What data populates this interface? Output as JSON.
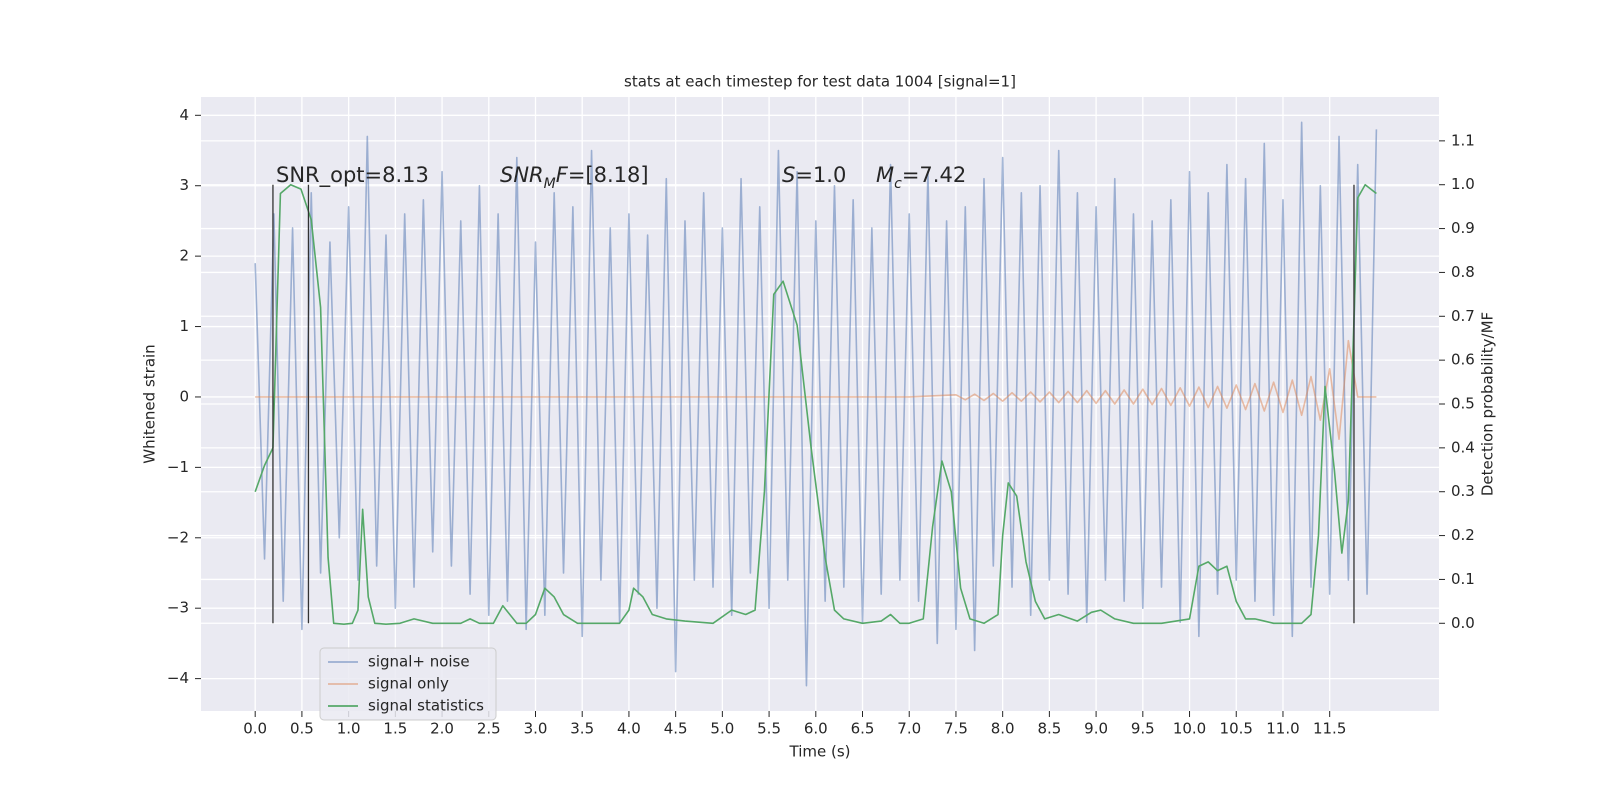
{
  "chart_data": {
    "type": "line",
    "title": "stats at each timestep for test data 1004 [signal=1]",
    "xlabel": "Time (s)",
    "ylabel": "Whitened strain",
    "y2label": "Detection probability/MF",
    "xlim": [
      -0.58,
      12.67
    ],
    "ylim": [
      -4.46,
      4.26
    ],
    "y2lim": [
      -0.2,
      1.2
    ],
    "xticks": [
      {
        "value": 0,
        "label": "0.0"
      },
      0.5,
      {
        "value": 1,
        "label": "1.0"
      },
      1.5,
      {
        "value": 2,
        "label": "2.0"
      },
      2.5,
      {
        "value": 3,
        "label": "3.0"
      },
      3.5,
      {
        "value": 4,
        "label": "4.0"
      },
      4.5,
      {
        "value": 5,
        "label": "5.0"
      },
      5.5,
      {
        "value": 6,
        "label": "6.0"
      },
      6.5,
      {
        "value": 7,
        "label": "7.0"
      },
      7.5,
      {
        "value": 8,
        "label": "8.0"
      },
      8.5,
      {
        "value": 9,
        "label": "9.0"
      },
      9.5,
      {
        "value": 10,
        "label": "10.0"
      },
      10.5,
      {
        "value": 11,
        "label": "11.0"
      },
      11.5
    ],
    "yticks": [
      {
        "value": -4,
        "label": "−4"
      },
      {
        "value": -3,
        "label": "−3"
      },
      {
        "value": -2,
        "label": "−2"
      },
      {
        "value": -1,
        "label": "−1"
      },
      0,
      1,
      2,
      3,
      4
    ],
    "y2ticks": [
      {
        "value": 0,
        "label": "0.0"
      },
      0.1,
      0.2,
      0.3,
      0.4,
      0.5,
      0.6,
      0.7,
      0.8,
      0.9,
      {
        "value": 1,
        "label": "1.0"
      },
      1.1
    ],
    "grid": true,
    "legend": "lower left",
    "series": [
      {
        "name": "signal+ noise",
        "color": "#4c72b0",
        "alpha": 0.5,
        "x": [
          0,
          0.1,
          0.2,
          0.3,
          0.4,
          0.5,
          0.6,
          0.7,
          0.8,
          0.9,
          1,
          1.1,
          1.2,
          1.3,
          1.4,
          1.5,
          1.6,
          1.7,
          1.8,
          1.9,
          2,
          2.1,
          2.2,
          2.3,
          2.4,
          2.5,
          2.6,
          2.7,
          2.8,
          2.9,
          3,
          3.1,
          3.2,
          3.3,
          3.4,
          3.5,
          3.6,
          3.7,
          3.8,
          3.9,
          4,
          4.1,
          4.2,
          4.3,
          4.4,
          4.5,
          4.6,
          4.7,
          4.8,
          4.9,
          5,
          5.1,
          5.2,
          5.3,
          5.4,
          5.5,
          5.6,
          5.7,
          5.8,
          5.9,
          6,
          6.1,
          6.2,
          6.3,
          6.4,
          6.5,
          6.6,
          6.7,
          6.8,
          6.9,
          7,
          7.1,
          7.2,
          7.3,
          7.4,
          7.5,
          7.6,
          7.7,
          7.8,
          7.9,
          8,
          8.1,
          8.2,
          8.3,
          8.4,
          8.5,
          8.6,
          8.7,
          8.8,
          8.9,
          9,
          9.1,
          9.2,
          9.3,
          9.4,
          9.5,
          9.6,
          9.7,
          9.8,
          9.9,
          10,
          10.1,
          10.2,
          10.3,
          10.4,
          10.5,
          10.6,
          10.7,
          10.8,
          10.9,
          11,
          11.1,
          11.2,
          11.3,
          11.4,
          11.5,
          11.6,
          11.7,
          11.8,
          11.9,
          12
        ],
        "values": [
          1.9,
          -2.3,
          2.6,
          -2.9,
          2.4,
          -3.3,
          2.9,
          -2.5,
          2.2,
          -2.0,
          2.7,
          -2.6,
          3.7,
          -2.4,
          2.3,
          -3.0,
          2.6,
          -2.7,
          2.8,
          -2.2,
          3.2,
          -2.4,
          2.5,
          -2.8,
          3.0,
          -3.1,
          2.6,
          -2.9,
          3.4,
          -3.3,
          2.2,
          -3.1,
          2.9,
          -2.5,
          2.7,
          -3.4,
          3.5,
          -2.6,
          2.4,
          -3.2,
          2.6,
          -2.8,
          2.3,
          -3.0,
          3.1,
          -3.9,
          2.5,
          -2.6,
          2.9,
          -2.7,
          2.4,
          -3.1,
          3.1,
          -2.5,
          2.7,
          -3.0,
          3.5,
          -2.6,
          3.2,
          -4.1,
          2.5,
          -2.9,
          3.0,
          -2.7,
          2.8,
          -3.2,
          2.4,
          -2.8,
          3.3,
          -2.6,
          2.6,
          -2.9,
          3.2,
          -3.5,
          2.5,
          -3.3,
          2.7,
          -3.6,
          3.1,
          -2.4,
          3.4,
          -2.7,
          2.9,
          -3.1,
          3.0,
          -2.6,
          3.5,
          -2.8,
          2.9,
          -3.2,
          2.7,
          -2.6,
          3.1,
          -2.9,
          2.6,
          -3.0,
          2.5,
          -2.7,
          2.8,
          -3.2,
          3.2,
          -3.4,
          2.9,
          -2.8,
          3.3,
          -2.6,
          3.1,
          -2.9,
          3.6,
          -3.1,
          2.8,
          -3.4,
          3.9,
          -2.7,
          3.0,
          -2.8,
          3.7,
          -2.6,
          3.3,
          -2.8,
          3.8
        ]
      },
      {
        "name": "signal only",
        "color": "#dd8452",
        "alpha": 0.5,
        "x": [
          0,
          7,
          7.5,
          7.6,
          7.7,
          7.8,
          7.9,
          8,
          8.1,
          8.2,
          8.3,
          8.4,
          8.5,
          8.6,
          8.7,
          8.8,
          8.9,
          9,
          9.1,
          9.2,
          9.3,
          9.4,
          9.5,
          9.6,
          9.7,
          9.8,
          9.9,
          10,
          10.1,
          10.2,
          10.3,
          10.4,
          10.5,
          10.6,
          10.7,
          10.8,
          10.9,
          11,
          11.1,
          11.2,
          11.3,
          11.4,
          11.5,
          11.6,
          11.7,
          11.8,
          12
        ],
        "values": [
          0,
          0,
          0.03,
          -0.04,
          0.04,
          -0.05,
          0.05,
          -0.06,
          0.06,
          -0.06,
          0.07,
          -0.07,
          0.07,
          -0.08,
          0.08,
          -0.08,
          0.09,
          -0.09,
          0.09,
          -0.1,
          0.1,
          -0.1,
          0.11,
          -0.11,
          0.12,
          -0.12,
          0.13,
          -0.13,
          0.14,
          -0.15,
          0.15,
          -0.16,
          0.17,
          -0.18,
          0.19,
          -0.2,
          0.21,
          -0.22,
          0.24,
          -0.26,
          0.29,
          -0.33,
          0.4,
          -0.6,
          0.8,
          0,
          0
        ]
      },
      {
        "name": "signal statistics",
        "color": "#55a868",
        "alpha": 1,
        "axis": "y2",
        "x": [
          0,
          0.1,
          0.19,
          0.27,
          0.38,
          0.49,
          0.6,
          0.7,
          0.78,
          0.84,
          0.95,
          1.04,
          1.1,
          1.15,
          1.21,
          1.28,
          1.4,
          1.55,
          1.7,
          1.9,
          2.1,
          2.2,
          2.3,
          2.4,
          2.55,
          2.65,
          2.8,
          2.9,
          3,
          3.1,
          3.2,
          3.3,
          3.45,
          3.65,
          3.9,
          4,
          4.05,
          4.15,
          4.25,
          4.4,
          4.6,
          4.9,
          5.1,
          5.25,
          5.35,
          5.45,
          5.55,
          5.65,
          5.8,
          5.95,
          6.1,
          6.2,
          6.3,
          6.5,
          6.7,
          6.8,
          6.9,
          7,
          7.15,
          7.25,
          7.35,
          7.45,
          7.55,
          7.65,
          7.8,
          7.95,
          8,
          8.06,
          8.15,
          8.25,
          8.35,
          8.45,
          8.6,
          8.8,
          8.95,
          9.05,
          9.2,
          9.4,
          9.7,
          10,
          10.1,
          10.2,
          10.3,
          10.4,
          10.5,
          10.6,
          10.7,
          10.8,
          10.9,
          11.05,
          11.2,
          11.3,
          11.38,
          11.45,
          11.55,
          11.63,
          11.7,
          11.8,
          11.88,
          12
        ],
        "values": [
          0.3,
          0.36,
          0.4,
          0.98,
          1,
          0.99,
          0.92,
          0.72,
          0.15,
          0,
          -0.002,
          0,
          0.03,
          0.26,
          0.06,
          0,
          -0.002,
          0,
          0.01,
          0,
          0,
          0,
          0.01,
          0,
          0,
          0.04,
          0,
          0,
          0.02,
          0.08,
          0.06,
          0.02,
          0,
          0,
          0,
          0.03,
          0.08,
          0.06,
          0.02,
          0.01,
          0.005,
          0,
          0.03,
          0.02,
          0.03,
          0.3,
          0.75,
          0.78,
          0.68,
          0.4,
          0.15,
          0.03,
          0.01,
          0,
          0.005,
          0.02,
          0,
          0,
          0.01,
          0.22,
          0.37,
          0.3,
          0.08,
          0.01,
          0,
          0.02,
          0.2,
          0.32,
          0.29,
          0.14,
          0.05,
          0.01,
          0.02,
          0.005,
          0.025,
          0.03,
          0.01,
          0,
          0,
          0.01,
          0.13,
          0.14,
          0.12,
          0.13,
          0.05,
          0.01,
          0.01,
          0.005,
          0,
          0,
          0,
          0.02,
          0.2,
          0.54,
          0.35,
          0.16,
          0.28,
          0.97,
          1,
          0.98
        ]
      }
    ],
    "vlines": {
      "x": [
        0.19,
        0.57,
        11.76
      ],
      "ymin": 0,
      "ymax": 1,
      "axis": "y2",
      "color": "#333333"
    },
    "annotations": [
      [
        {
          "text": "SNR_opt=8.13"
        }
      ],
      [
        {
          "text": "SNR",
          "italic": true
        },
        {
          "text": "M",
          "italic": true,
          "sub": true
        },
        {
          "text": "F",
          "italic": true
        },
        {
          "text": "=[8.18]"
        }
      ],
      [
        {
          "text": "S",
          "italic": true
        },
        {
          "text": "=1.0"
        }
      ],
      [
        {
          "text": "M",
          "italic": true
        },
        {
          "text": "c",
          "italic": true,
          "sub": true
        },
        {
          "text": "=7.42"
        }
      ]
    ]
  }
}
